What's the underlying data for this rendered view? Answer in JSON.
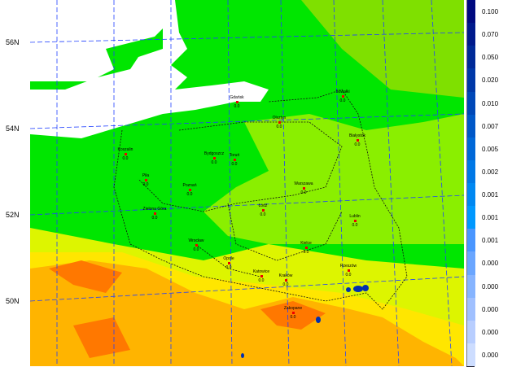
{
  "lat_labels": [
    "56N",
    "54N",
    "52N",
    "50N"
  ],
  "cities": [
    {
      "name": "Gdańsk",
      "value": "0.0"
    },
    {
      "name": "Suwałki",
      "value": "0.0"
    },
    {
      "name": "Olsztyn",
      "value": "0.0"
    },
    {
      "name": "Białystok",
      "value": "0.0"
    },
    {
      "name": "Koszalin",
      "value": "0.0"
    },
    {
      "name": "Bydgoszcz",
      "value": "0.0"
    },
    {
      "name": "Toruń",
      "value": "0.0"
    },
    {
      "name": "Piła",
      "value": "0.0"
    },
    {
      "name": "Poznań",
      "value": "0.0"
    },
    {
      "name": "Warszawa",
      "value": "0.0"
    },
    {
      "name": "Zielona Góra",
      "value": "0.0"
    },
    {
      "name": "Łódź",
      "value": "0.0"
    },
    {
      "name": "Lublin",
      "value": "0.0"
    },
    {
      "name": "Wrocław",
      "value": "0.0"
    },
    {
      "name": "Kielce",
      "value": "0.0"
    },
    {
      "name": "Opole",
      "value": "0.0"
    },
    {
      "name": "Katowice",
      "value": "0.0"
    },
    {
      "name": "Kraków",
      "value": "0.0"
    },
    {
      "name": "Rzeszów",
      "value": "0.0"
    },
    {
      "name": "Zakopane",
      "value": "0.0"
    }
  ],
  "legend": {
    "labels": [
      "0.100",
      "0.070",
      "0.050",
      "0.020",
      "0.010",
      "0.007",
      "0.005",
      "0.002",
      "0.001",
      "0.001",
      "0.001",
      "0.000",
      "0.000",
      "0.000",
      "0.000",
      "0.000"
    ],
    "colors": [
      "#000a80",
      "#001a8c",
      "#002a98",
      "#0038a8",
      "#0048b8",
      "#0058c8",
      "#0068d8",
      "#0078e6",
      "#0088f2",
      "#0098ff",
      "#4a96ff",
      "#6aa6ff",
      "#86b4ff",
      "#a0c0ff",
      "#b8ceff",
      "#cdddff"
    ]
  },
  "field_colors": {
    "sea": "#ffffff",
    "low": "#00e600",
    "mid": "#99f000",
    "high": "#ffff00",
    "higher": "#ffb400",
    "peak": "#ff6400"
  }
}
